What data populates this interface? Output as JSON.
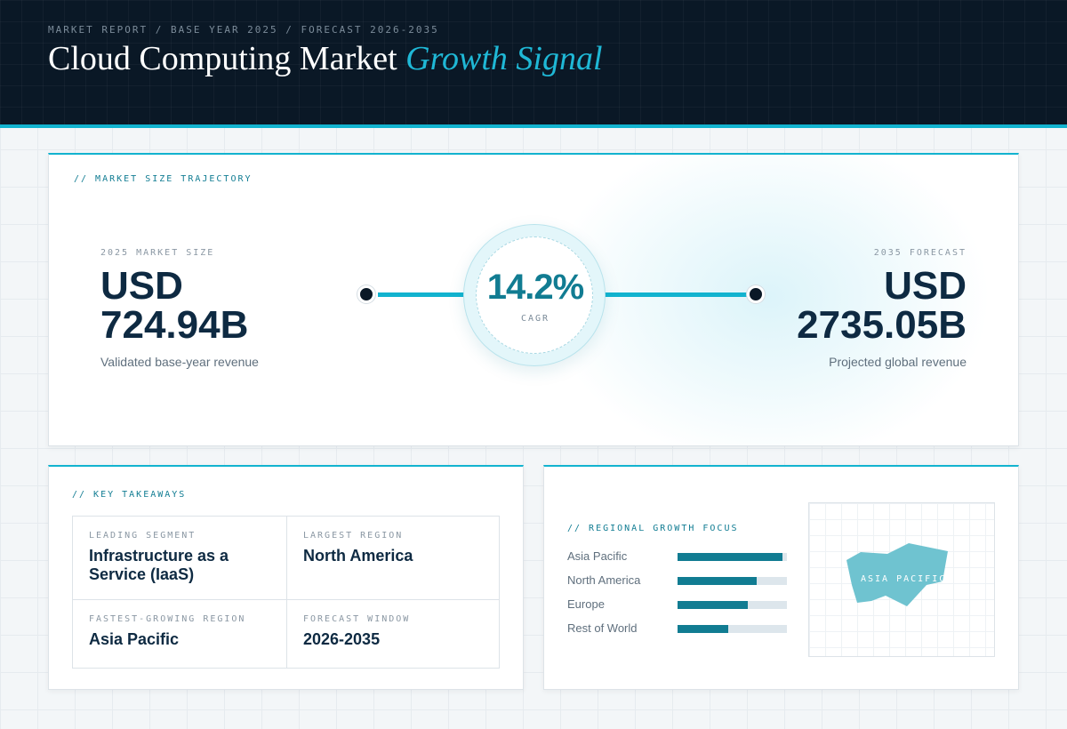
{
  "header": {
    "kicker": "MARKET REPORT / BASE YEAR 2025 / FORECAST 2026-2035",
    "title_main": "Cloud Computing Market",
    "title_accent": "Growth Signal"
  },
  "trajectory": {
    "label": "// MARKET SIZE TRAJECTORY",
    "start": {
      "caption": "2025 MARKET SIZE",
      "currency": "USD",
      "value": "724.94B",
      "description": "Validated base-year revenue"
    },
    "end": {
      "caption": "2035 FORECAST",
      "currency": "USD",
      "value": "2735.05B",
      "description": "Projected global revenue"
    },
    "cagr": {
      "value": "14.2%",
      "label": "CAGR"
    }
  },
  "takeaways": {
    "label": "// KEY TAKEAWAYS",
    "items": [
      {
        "caption": "LEADING SEGMENT",
        "value": "Infrastructure as a Service (IaaS)"
      },
      {
        "caption": "LARGEST REGION",
        "value": "North America"
      },
      {
        "caption": "FASTEST-GROWING REGION",
        "value": "Asia Pacific"
      },
      {
        "caption": "FORECAST WINDOW",
        "value": "2026-2035"
      }
    ]
  },
  "regional": {
    "label": "// REGIONAL GROWTH FOCUS",
    "bars": [
      {
        "name": "Asia Pacific",
        "level": 0.96
      },
      {
        "name": "North America",
        "level": 0.72
      },
      {
        "name": "Europe",
        "level": 0.64
      },
      {
        "name": "Rest of World",
        "level": 0.46
      }
    ],
    "map_label": "ASIA PACIFIC"
  },
  "colors": {
    "header_bg": "#0a1826",
    "accent": "#12b3cf",
    "teal_dark": "#117c92",
    "navy_text": "#0e2a42",
    "map_region": "#6fc3d0"
  }
}
